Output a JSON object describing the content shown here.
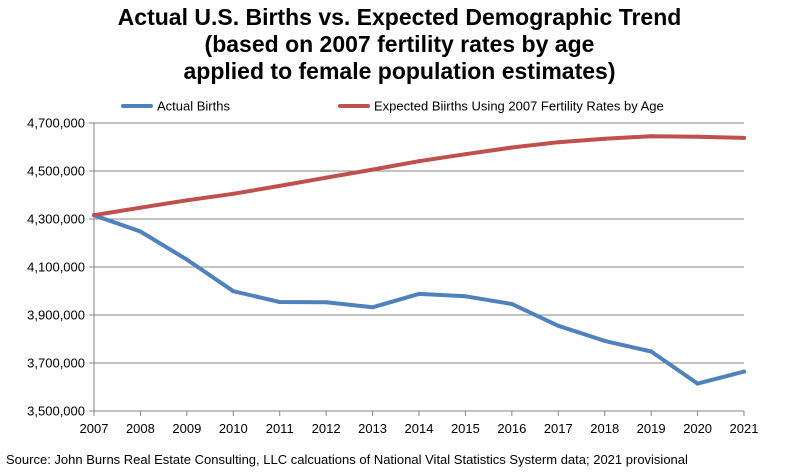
{
  "chart_data": {
    "type": "line",
    "title_lines": [
      "Actual U.S. Births vs. Expected Demographic Trend",
      "(based on 2007 fertility rates by age",
      "applied to female population estimates)"
    ],
    "categories": [
      "2007",
      "2008",
      "2009",
      "2010",
      "2011",
      "2012",
      "2013",
      "2014",
      "2015",
      "2016",
      "2017",
      "2018",
      "2019",
      "2020",
      "2021"
    ],
    "ylim": [
      3500000,
      4700000
    ],
    "yticks": [
      3500000,
      3700000,
      3900000,
      4100000,
      4300000,
      4500000,
      4700000
    ],
    "ytick_labels": [
      "3,500,000",
      "3,700,000",
      "3,900,000",
      "4,100,000",
      "4,300,000",
      "4,500,000",
      "4,700,000"
    ],
    "grid": true,
    "legend_position": "top",
    "series": [
      {
        "name": "Actual Births",
        "color": "#4f81bd",
        "values": [
          4316000,
          4248000,
          4131000,
          3999000,
          3954000,
          3953000,
          3932000,
          3988000,
          3978000,
          3946000,
          3855000,
          3792000,
          3748000,
          3614000,
          3664000
        ]
      },
      {
        "name": "Expected Biirths Using 2007 Fertility Rates by Age",
        "color": "#c0504d",
        "values": [
          4316000,
          4347000,
          4378000,
          4405000,
          4438000,
          4472000,
          4506000,
          4541000,
          4570000,
          4598000,
          4620000,
          4634000,
          4645000,
          4643000,
          4638000
        ]
      }
    ]
  },
  "source": "Source: John Burns Real Estate Consulting, LLC calcuations of National Vital Statistics Systerm data; 2021 provisional"
}
